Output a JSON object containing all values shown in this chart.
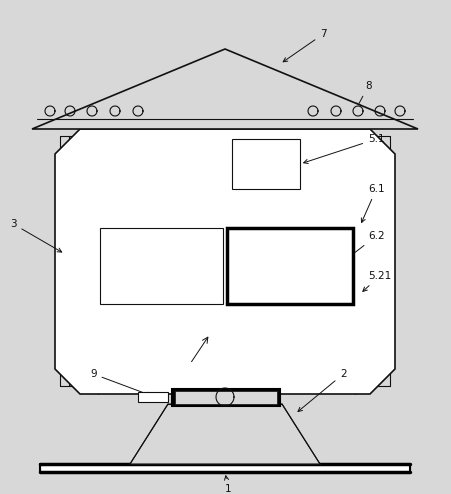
{
  "bg_color": "#d8d8d8",
  "line_color": "#111111",
  "figsize": [
    4.51,
    4.94
  ],
  "dpi": 100,
  "fs": 7.5
}
